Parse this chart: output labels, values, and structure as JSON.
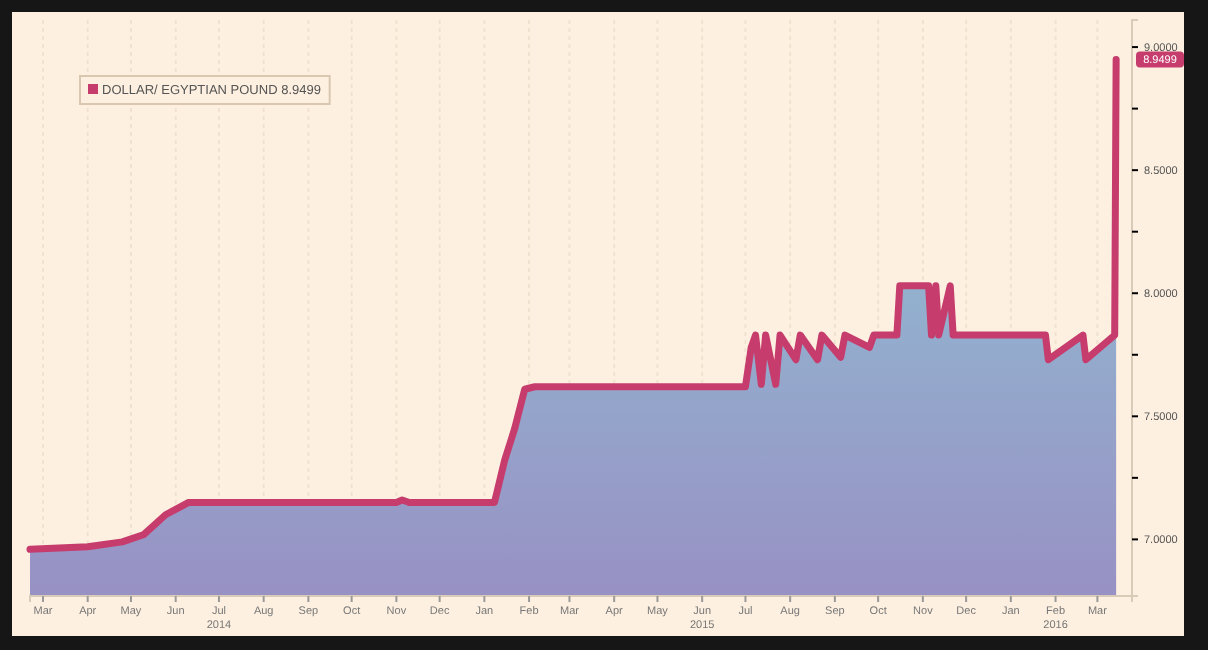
{
  "chart_data": {
    "type": "area",
    "legend": "top left",
    "grid": "x",
    "xlim": [
      "2014-02-20",
      "2016-03-25"
    ],
    "ylim": [
      6.77,
      9.11
    ],
    "yticks": [
      {
        "value": 7,
        "label": "7.0000"
      },
      {
        "value": 7.25,
        "label": null
      },
      {
        "value": 7.5,
        "label": "7.5000"
      },
      {
        "value": 7.75,
        "label": null
      },
      {
        "value": 8,
        "label": "8.0000"
      },
      {
        "value": 8.25,
        "label": null
      },
      {
        "value": 8.5,
        "label": "8.5000"
      },
      {
        "value": 8.75,
        "label": null
      },
      {
        "value": 9,
        "label": "9.0000"
      }
    ],
    "xticks": [
      {
        "value": "2014-03-01",
        "label": "Mar"
      },
      {
        "value": "2014-04-01",
        "label": "Apr"
      },
      {
        "value": "2014-05-01",
        "label": "May"
      },
      {
        "value": "2014-06-01",
        "label": "Jun"
      },
      {
        "value": "2014-07-01",
        "label": "Jul\n2014"
      },
      {
        "value": "2014-08-01",
        "label": "Aug"
      },
      {
        "value": "2014-09-01",
        "label": "Sep"
      },
      {
        "value": "2014-10-01",
        "label": "Oct"
      },
      {
        "value": "2014-11-01",
        "label": "Nov"
      },
      {
        "value": "2014-12-01",
        "label": "Dec"
      },
      {
        "value": "2015-01-01",
        "label": "Jan"
      },
      {
        "value": "2015-02-01",
        "label": "Feb"
      },
      {
        "value": "2015-03-01",
        "label": "Mar"
      },
      {
        "value": "2015-04-01",
        "label": "Apr"
      },
      {
        "value": "2015-05-01",
        "label": "May"
      },
      {
        "value": "2015-06-01",
        "label": "Jun\n2015"
      },
      {
        "value": "2015-07-01",
        "label": "Jul"
      },
      {
        "value": "2015-08-01",
        "label": "Aug"
      },
      {
        "value": "2015-09-01",
        "label": "Sep"
      },
      {
        "value": "2015-10-01",
        "label": "Oct"
      },
      {
        "value": "2015-11-01",
        "label": "Nov"
      },
      {
        "value": "2015-12-01",
        "label": "Dec"
      },
      {
        "value": "2016-01-01",
        "label": "Jan"
      },
      {
        "value": "2016-02-01",
        "label": "Feb\n2016"
      },
      {
        "value": "2016-03-01",
        "label": "Mar"
      }
    ],
    "annotations": [
      {
        "text": "8.9499",
        "y": 8.9499
      }
    ],
    "series": [
      {
        "name": "DOLLAR/ EGYPTIAN POUND 8.9499",
        "color": "#c63c6c",
        "x": [
          "2014-02-20",
          "2014-04-01",
          "2014-04-25",
          "2014-05-10",
          "2014-05-25",
          "2014-06-10",
          "2014-11-01",
          "2014-11-05",
          "2014-11-10",
          "2015-01-08",
          "2015-01-15",
          "2015-01-22",
          "2015-01-29",
          "2015-02-05",
          "2015-07-01",
          "2015-07-05",
          "2015-07-08",
          "2015-07-12",
          "2015-07-15",
          "2015-07-22",
          "2015-07-25",
          "2015-08-05",
          "2015-08-08",
          "2015-08-20",
          "2015-08-23",
          "2015-09-05",
          "2015-09-08",
          "2015-09-25",
          "2015-09-28",
          "2015-10-14",
          "2015-10-16",
          "2015-11-05",
          "2015-11-07",
          "2015-11-10",
          "2015-11-12",
          "2015-11-20",
          "2015-11-22",
          "2016-01-25",
          "2016-01-27",
          "2016-02-20",
          "2016-02-22",
          "2016-03-13",
          "2016-03-14"
        ],
        "values": [
          6.96,
          6.97,
          6.99,
          7.02,
          7.1,
          7.15,
          7.15,
          7.16,
          7.15,
          7.15,
          7.32,
          7.45,
          7.61,
          7.62,
          7.62,
          7.78,
          7.83,
          7.63,
          7.83,
          7.63,
          7.83,
          7.73,
          7.83,
          7.73,
          7.83,
          7.74,
          7.83,
          7.78,
          7.83,
          7.83,
          8.03,
          8.03,
          7.83,
          8.03,
          7.83,
          8.03,
          7.83,
          7.83,
          7.73,
          7.83,
          7.73,
          7.83,
          8.95
        ]
      }
    ]
  }
}
